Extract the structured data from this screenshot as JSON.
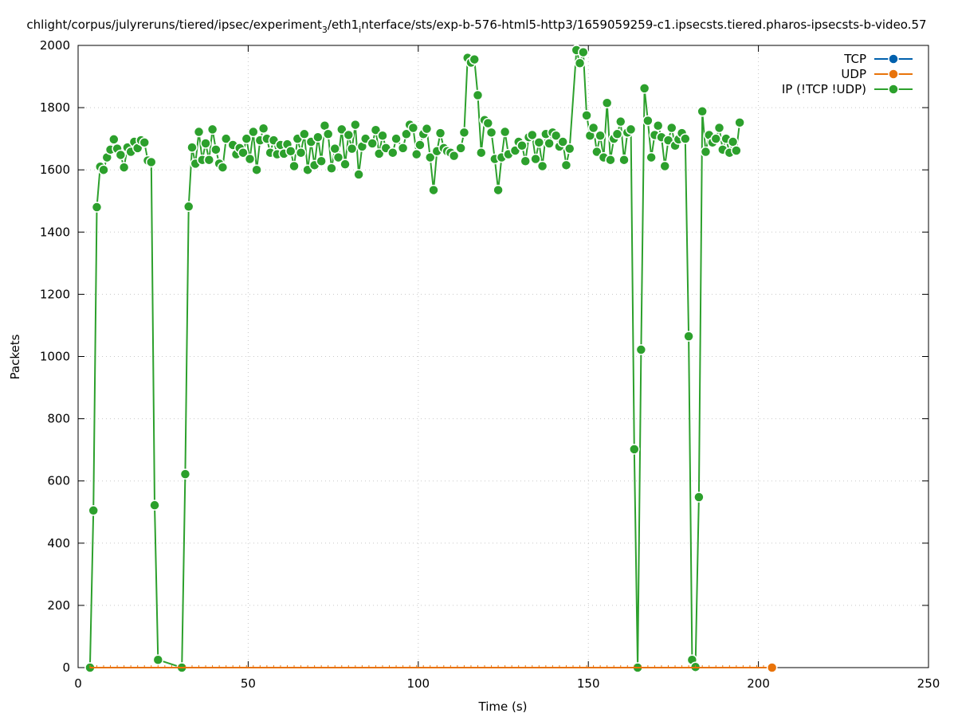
{
  "chart_data": {
    "type": "line",
    "title": "chlight/corpus/julyreruns/tiered/ipsec/experiment_3/eth1_interface/sts/exp-b-576-html5-http3/1659059259-c1.ipsecsts.tiered.pharos-ipsecsts-b-video.57",
    "title_parts": {
      "p1": "chlight/corpus/julyreruns/tiered/ipsec/experiment",
      "sub1": "3",
      "p2": "/eth1",
      "sub2": "i",
      "p3": "nterface/sts/exp-b-576-html5-http3/1659059259-c1.ipsecsts.tiered.pharos-ipsecsts-b-video.57"
    },
    "xlabel": "Time (s)",
    "ylabel": "Packets",
    "xlim": [
      0,
      250
    ],
    "ylim": [
      0,
      2000
    ],
    "xticks": [
      0,
      50,
      100,
      150,
      200,
      250
    ],
    "yticks": [
      0,
      200,
      400,
      600,
      800,
      1000,
      1200,
      1400,
      1600,
      1800,
      2000
    ],
    "grid": true,
    "legend_position": "top-right",
    "series": [
      {
        "name": "TCP",
        "color": "#0060ad",
        "points": [
          [
            3.5,
            0
          ],
          [
            204,
            0
          ]
        ]
      },
      {
        "name": "UDP",
        "color": "#e8730a",
        "points": [
          [
            3.5,
            0
          ],
          [
            5.5,
            0
          ],
          [
            7.5,
            0
          ],
          [
            9.5,
            0
          ],
          [
            11.5,
            0
          ],
          [
            13.5,
            0
          ],
          [
            15.5,
            0
          ],
          [
            17.5,
            0
          ],
          [
            19.5,
            0
          ],
          [
            21.5,
            0
          ],
          [
            23.5,
            0
          ],
          [
            25.5,
            0
          ],
          [
            27.5,
            0
          ],
          [
            29.5,
            0
          ],
          [
            31.5,
            0
          ],
          [
            33.5,
            0
          ],
          [
            35.5,
            0
          ],
          [
            37.5,
            0
          ],
          [
            39.5,
            0
          ],
          [
            41.5,
            0
          ],
          [
            43.5,
            0
          ],
          [
            45.5,
            0
          ],
          [
            47.5,
            0
          ],
          [
            49.5,
            0
          ],
          [
            51.5,
            0
          ],
          [
            53.5,
            0
          ],
          [
            55.5,
            0
          ],
          [
            57.5,
            0
          ],
          [
            59.5,
            0
          ],
          [
            61.5,
            0
          ],
          [
            63.5,
            0
          ],
          [
            65.5,
            0
          ],
          [
            67.5,
            0
          ],
          [
            69.5,
            0
          ],
          [
            71.5,
            0
          ],
          [
            73.5,
            0
          ],
          [
            75.5,
            0
          ],
          [
            77.5,
            0
          ],
          [
            79.5,
            0
          ],
          [
            81.5,
            0
          ],
          [
            83.5,
            0
          ],
          [
            85.5,
            0
          ],
          [
            87.5,
            0
          ],
          [
            89.5,
            0
          ],
          [
            91.5,
            0
          ],
          [
            93.5,
            0
          ],
          [
            95.5,
            0
          ],
          [
            97.5,
            0
          ],
          [
            99.5,
            0
          ],
          [
            101.5,
            0
          ],
          [
            103.5,
            0
          ],
          [
            105.5,
            0
          ],
          [
            107.5,
            0
          ],
          [
            109.5,
            0
          ],
          [
            111.5,
            0
          ],
          [
            113.5,
            0
          ],
          [
            115.5,
            0
          ],
          [
            117.5,
            0
          ],
          [
            119.5,
            0
          ],
          [
            121.5,
            0
          ],
          [
            123.5,
            0
          ],
          [
            125.5,
            0
          ],
          [
            127.5,
            0
          ],
          [
            129.5,
            0
          ],
          [
            131.5,
            0
          ],
          [
            133.5,
            0
          ],
          [
            135.5,
            0
          ],
          [
            137.5,
            0
          ],
          [
            139.5,
            0
          ],
          [
            141.5,
            0
          ],
          [
            143.5,
            0
          ],
          [
            145.5,
            0
          ],
          [
            147.5,
            0
          ],
          [
            149.5,
            0
          ],
          [
            151.5,
            0
          ],
          [
            153.5,
            0
          ],
          [
            155.5,
            0
          ],
          [
            157.5,
            0
          ],
          [
            159.5,
            0
          ],
          [
            161.5,
            0
          ],
          [
            163.5,
            0
          ],
          [
            165.5,
            0
          ],
          [
            167.5,
            0
          ],
          [
            169.5,
            0
          ],
          [
            171.5,
            0
          ],
          [
            173.5,
            0
          ],
          [
            175.5,
            0
          ],
          [
            177.5,
            0
          ],
          [
            179.5,
            0
          ],
          [
            181.5,
            0
          ],
          [
            183.5,
            0
          ],
          [
            185.5,
            0
          ],
          [
            187.5,
            0
          ],
          [
            189.5,
            0
          ],
          [
            191.5,
            0
          ],
          [
            193.5,
            0
          ],
          [
            195.5,
            0
          ],
          [
            197.5,
            0
          ],
          [
            199.5,
            0
          ],
          [
            201.5,
            0
          ],
          [
            204,
            0
          ]
        ]
      },
      {
        "name": "IP (!TCP  !UDP)",
        "color": "#2ca02c",
        "points": [
          [
            3.5,
            0
          ],
          [
            4.5,
            505
          ],
          [
            5.5,
            1480
          ],
          [
            6.5,
            1610
          ],
          [
            7.5,
            1600
          ],
          [
            8.5,
            1640
          ],
          [
            9.5,
            1665
          ],
          [
            10.5,
            1698
          ],
          [
            11.5,
            1668
          ],
          [
            12.5,
            1648
          ],
          [
            13.5,
            1608
          ],
          [
            14.5,
            1672
          ],
          [
            15.5,
            1658
          ],
          [
            16.5,
            1690
          ],
          [
            17.5,
            1670
          ],
          [
            18.5,
            1695
          ],
          [
            19.5,
            1688
          ],
          [
            20.5,
            1630
          ],
          [
            21.5,
            1625
          ],
          [
            22.5,
            522
          ],
          [
            23.5,
            25
          ],
          [
            30.5,
            0
          ],
          [
            31.5,
            622
          ],
          [
            32.5,
            1482
          ],
          [
            33.5,
            1672
          ],
          [
            34.5,
            1620
          ],
          [
            35.5,
            1722
          ],
          [
            36.5,
            1632
          ],
          [
            37.5,
            1685
          ],
          [
            38.5,
            1632
          ],
          [
            39.5,
            1730
          ],
          [
            40.5,
            1665
          ],
          [
            41.5,
            1620
          ],
          [
            42.5,
            1608
          ],
          [
            43.5,
            1700
          ],
          [
            45.5,
            1680
          ],
          [
            46.5,
            1650
          ],
          [
            47.5,
            1670
          ],
          [
            48.5,
            1655
          ],
          [
            49.5,
            1700
          ],
          [
            50.5,
            1635
          ],
          [
            51.5,
            1722
          ],
          [
            52.5,
            1600
          ],
          [
            53.5,
            1695
          ],
          [
            54.5,
            1733
          ],
          [
            55.5,
            1700
          ],
          [
            56.5,
            1655
          ],
          [
            57.5,
            1695
          ],
          [
            58.5,
            1650
          ],
          [
            59.5,
            1680
          ],
          [
            60.5,
            1652
          ],
          [
            61.5,
            1682
          ],
          [
            62.5,
            1660
          ],
          [
            63.5,
            1612
          ],
          [
            64.5,
            1700
          ],
          [
            65.5,
            1655
          ],
          [
            66.5,
            1715
          ],
          [
            67.5,
            1600
          ],
          [
            68.5,
            1690
          ],
          [
            69.5,
            1615
          ],
          [
            70.5,
            1705
          ],
          [
            71.5,
            1628
          ],
          [
            72.5,
            1742
          ],
          [
            73.5,
            1715
          ],
          [
            74.5,
            1605
          ],
          [
            75.5,
            1668
          ],
          [
            76.5,
            1640
          ],
          [
            77.5,
            1730
          ],
          [
            78.5,
            1618
          ],
          [
            79.5,
            1712
          ],
          [
            80.5,
            1668
          ],
          [
            81.5,
            1745
          ],
          [
            82.5,
            1585
          ],
          [
            83.5,
            1675
          ],
          [
            84.5,
            1700
          ],
          [
            86.5,
            1685
          ],
          [
            87.5,
            1728
          ],
          [
            88.5,
            1652
          ],
          [
            89.5,
            1710
          ],
          [
            90.5,
            1670
          ],
          [
            92.5,
            1655
          ],
          [
            93.5,
            1700
          ],
          [
            95.5,
            1670
          ],
          [
            96.5,
            1715
          ],
          [
            97.5,
            1745
          ],
          [
            98.5,
            1735
          ],
          [
            99.5,
            1650
          ],
          [
            100.5,
            1680
          ],
          [
            101.5,
            1715
          ],
          [
            102.5,
            1732
          ],
          [
            103.5,
            1640
          ],
          [
            104.5,
            1535
          ],
          [
            105.5,
            1660
          ],
          [
            106.5,
            1718
          ],
          [
            107.5,
            1670
          ],
          [
            108.5,
            1660
          ],
          [
            109.5,
            1655
          ],
          [
            110.5,
            1645
          ],
          [
            112.5,
            1670
          ],
          [
            113.5,
            1720
          ],
          [
            114.5,
            1960
          ],
          [
            115.5,
            1945
          ],
          [
            116.5,
            1955
          ],
          [
            117.5,
            1840
          ],
          [
            118.5,
            1655
          ],
          [
            119.5,
            1760
          ],
          [
            120.5,
            1750
          ],
          [
            121.5,
            1720
          ],
          [
            122.5,
            1635
          ],
          [
            123.5,
            1535
          ],
          [
            124.5,
            1640
          ],
          [
            125.5,
            1722
          ],
          [
            126.5,
            1650
          ],
          [
            128.5,
            1662
          ],
          [
            129.5,
            1690
          ],
          [
            130.5,
            1678
          ],
          [
            131.5,
            1628
          ],
          [
            132.5,
            1705
          ],
          [
            133.5,
            1712
          ],
          [
            134.5,
            1635
          ],
          [
            135.5,
            1688
          ],
          [
            136.5,
            1612
          ],
          [
            137.5,
            1715
          ],
          [
            138.5,
            1685
          ],
          [
            139.5,
            1720
          ],
          [
            140.5,
            1710
          ],
          [
            141.5,
            1675
          ],
          [
            142.5,
            1690
          ],
          [
            143.5,
            1615
          ],
          [
            144.5,
            1668
          ],
          [
            146.5,
            1985
          ],
          [
            147.5,
            1943
          ],
          [
            148.5,
            1978
          ],
          [
            149.5,
            1775
          ],
          [
            150.5,
            1710
          ],
          [
            151.5,
            1735
          ],
          [
            152.5,
            1658
          ],
          [
            153.5,
            1710
          ],
          [
            154.5,
            1640
          ],
          [
            155.5,
            1815
          ],
          [
            156.5,
            1632
          ],
          [
            157.5,
            1700
          ],
          [
            158.5,
            1715
          ],
          [
            159.5,
            1755
          ],
          [
            160.5,
            1632
          ],
          [
            161.5,
            1720
          ],
          [
            162.5,
            1730
          ],
          [
            163.5,
            702
          ],
          [
            164.5,
            0
          ],
          [
            165.5,
            1022
          ],
          [
            166.5,
            1862
          ],
          [
            167.5,
            1758
          ],
          [
            168.5,
            1640
          ],
          [
            169.5,
            1712
          ],
          [
            170.5,
            1742
          ],
          [
            171.5,
            1705
          ],
          [
            172.5,
            1612
          ],
          [
            173.5,
            1695
          ],
          [
            174.5,
            1735
          ],
          [
            175.5,
            1678
          ],
          [
            176.5,
            1698
          ],
          [
            177.5,
            1718
          ],
          [
            178.5,
            1700
          ],
          [
            179.5,
            1065
          ],
          [
            180.5,
            25
          ],
          [
            181.5,
            2
          ],
          [
            182.5,
            548
          ],
          [
            183.5,
            1788
          ],
          [
            184.5,
            1658
          ],
          [
            185.5,
            1712
          ],
          [
            186.5,
            1688
          ],
          [
            187.5,
            1700
          ],
          [
            188.5,
            1735
          ],
          [
            189.5,
            1665
          ],
          [
            190.5,
            1700
          ],
          [
            191.5,
            1655
          ],
          [
            192.5,
            1690
          ],
          [
            193.5,
            1662
          ],
          [
            194.5,
            1752
          ]
        ]
      }
    ]
  }
}
